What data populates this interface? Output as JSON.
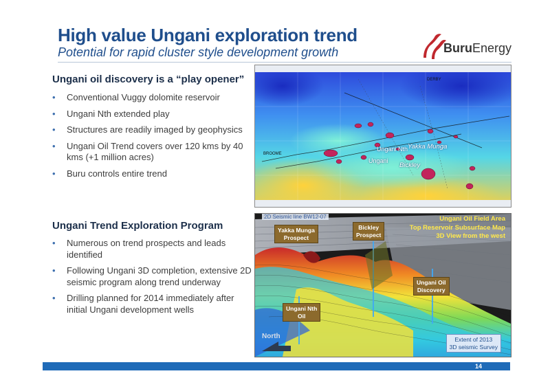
{
  "header": {
    "title": "High value Ungani exploration trend",
    "subtitle": "Potential for rapid cluster style development growth",
    "logo_text_bold": "Buru",
    "logo_text_rest": "Energy"
  },
  "section1": {
    "heading": "Ungani oil discovery is a “play opener”",
    "bullets": [
      "Conventional Vuggy dolomite reservoir",
      "Ungani Nth  extended play",
      "Structures are readily imaged by geophysics",
      "Ungani Oil Trend covers over 120 kms by 40 kms (+1 million acres)",
      "Buru controls entire trend"
    ]
  },
  "section2": {
    "heading": "Ungani Trend Exploration Program",
    "bullets": [
      "Numerous on trend prospects and leads identified",
      "Following Ungani 3D completion, extensive 2D seismic program along trend underway",
      "Drilling planned for 2014 immediately after initial Ungani development wells"
    ]
  },
  "map": {
    "labels": {
      "ungani_nth": "Ungani Nth",
      "yakka_munga": "Yakka Munga",
      "ungani": "Ungani",
      "bickley": "Bickley",
      "broome": "BROOME",
      "derby": "DERBY"
    }
  },
  "view3d": {
    "title_lines": [
      "Ungani Oil Field Area",
      "Top Reservoir Subsurface Map",
      "3D View from the west"
    ],
    "seismic_line": "2D Seismic line BW12-07",
    "tags": {
      "yakka": [
        "Yakka Munga",
        "Prospect"
      ],
      "bickley": [
        "Bickley",
        "Prospect"
      ],
      "ungani_oil": [
        "Ungani Oil",
        "Discovery"
      ],
      "ungani_nth": [
        "Ungani Nth",
        "Oil"
      ]
    },
    "survey_note": [
      "Extent of 2013",
      "3D seismic Survey"
    ],
    "north": "North"
  },
  "footer": {
    "page": "14"
  },
  "colors": {
    "title_blue": "#1f4e8c",
    "footer_blue": "#1f6bb8",
    "logo_red": "#c0282e",
    "tag_brown": "#8c6a2d",
    "highlight_yellow": "#ffe84a"
  },
  "icons": [
    "buru-energy-logo-icon",
    "north-arrow-icon"
  ]
}
